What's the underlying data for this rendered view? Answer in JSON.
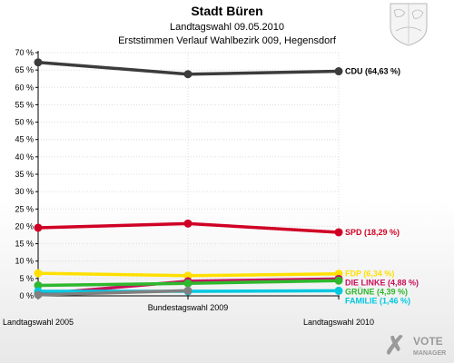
{
  "chart_data": {
    "type": "line",
    "title": "Stadt Büren",
    "subtitle1": "Landtagswahl 09.05.2010",
    "subtitle2": "Erststimmen Verlauf Wahlbezirk 009, Hegensdorf",
    "x": [
      "Landtagswahl 2005",
      "Bundestagswahl 2009",
      "Landtagswahl 2010"
    ],
    "ylim": [
      0,
      70
    ],
    "yticks": [
      "0 %",
      "5 %",
      "10 %",
      "15 %",
      "20 %",
      "25 %",
      "30 %",
      "35 %",
      "40 %",
      "45 %",
      "50 %",
      "55 %",
      "60 %",
      "65 %",
      "70 %"
    ],
    "grid": true,
    "series": [
      {
        "name": "CDU",
        "values": [
          67.2,
          63.8,
          64.63
        ],
        "color": "#3c3c3c",
        "label": "CDU (64,63 %)"
      },
      {
        "name": "SPD",
        "values": [
          19.6,
          20.8,
          18.29
        ],
        "color": "#d00025",
        "label": "SPD (18,29 %)"
      },
      {
        "name": "FDP",
        "values": [
          6.5,
          5.8,
          6.34
        ],
        "color": "#ffe000",
        "label": "FDP (6,34 %)"
      },
      {
        "name": "DIE LINKE",
        "values": [
          0.5,
          4.2,
          4.88
        ],
        "color": "#c8105d",
        "label": "DIE LINKE (4,88 %)"
      },
      {
        "name": "GRÜNE",
        "values": [
          3.0,
          3.6,
          4.39
        ],
        "color": "#2eb82e",
        "label": "GRÜNE (4,39 %)"
      },
      {
        "name": "FAMILIE",
        "values": [
          1.3,
          1.3,
          1.46
        ],
        "color": "#00c8e0",
        "label": "FAMILIE (1,46 %)"
      },
      {
        "name": "other",
        "values": [
          0.3,
          1.5,
          null
        ],
        "color": "#808080"
      }
    ]
  },
  "logo": {
    "line1": "VOTE",
    "line2": "MANAGER",
    "mark": "✗"
  }
}
